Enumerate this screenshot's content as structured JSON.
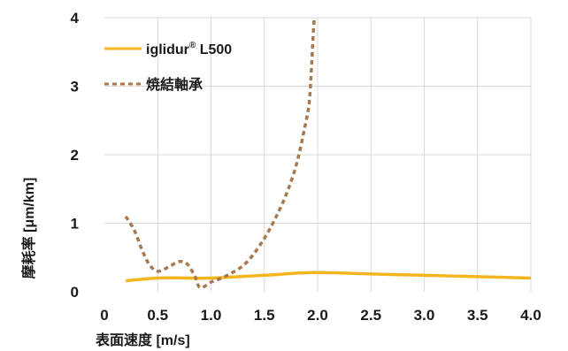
{
  "chart_data": {
    "type": "line",
    "title": "",
    "xlabel": "表面速度 [m/s]",
    "ylabel": "摩耗率 [μm/km]",
    "xlim": [
      0,
      4.0
    ],
    "ylim": [
      0,
      4
    ],
    "grid": true,
    "legend_position": "top-left",
    "x_ticks": [
      "0",
      "0.5",
      "1.0",
      "1.5",
      "2.0",
      "2.5",
      "3.0",
      "3.5",
      "4.0"
    ],
    "y_ticks": [
      "0",
      "1",
      "2",
      "3",
      "4"
    ],
    "series": [
      {
        "name": "iglidur",
        "name_suffix": "®",
        "name_rest": " L500",
        "color": "#f5b51e",
        "style": "solid",
        "points": [
          [
            0.2,
            0.16
          ],
          [
            0.5,
            0.2
          ],
          [
            0.8,
            0.2
          ],
          [
            1.0,
            0.2
          ],
          [
            1.5,
            0.24
          ],
          [
            1.95,
            0.28
          ],
          [
            2.5,
            0.26
          ],
          [
            3.0,
            0.24
          ],
          [
            3.5,
            0.22
          ],
          [
            4.0,
            0.2
          ]
        ]
      },
      {
        "name": "焼結軸承",
        "name_suffix": "",
        "name_rest": "",
        "color": "#a87850",
        "style": "dashed",
        "points": [
          [
            0.2,
            1.1
          ],
          [
            0.28,
            0.9
          ],
          [
            0.35,
            0.62
          ],
          [
            0.42,
            0.4
          ],
          [
            0.5,
            0.3
          ],
          [
            0.6,
            0.36
          ],
          [
            0.7,
            0.44
          ],
          [
            0.78,
            0.4
          ],
          [
            0.85,
            0.22
          ],
          [
            0.9,
            0.06
          ],
          [
            1.0,
            0.14
          ],
          [
            1.1,
            0.2
          ],
          [
            1.2,
            0.28
          ],
          [
            1.3,
            0.38
          ],
          [
            1.4,
            0.55
          ],
          [
            1.5,
            0.78
          ],
          [
            1.6,
            1.06
          ],
          [
            1.7,
            1.4
          ],
          [
            1.8,
            1.85
          ],
          [
            1.88,
            2.4
          ],
          [
            1.92,
            2.75
          ],
          [
            1.94,
            3.2
          ],
          [
            1.96,
            3.8
          ],
          [
            1.97,
            4.0
          ]
        ]
      }
    ]
  }
}
